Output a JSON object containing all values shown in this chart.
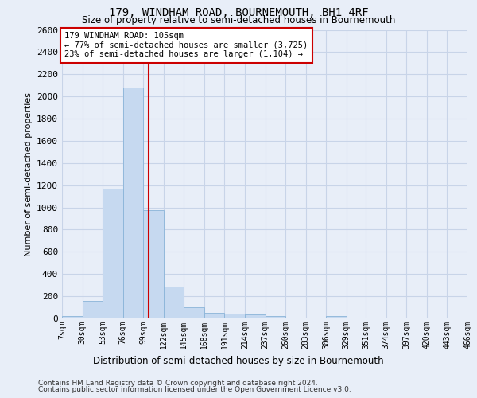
{
  "title": "179, WINDHAM ROAD, BOURNEMOUTH, BH1 4RF",
  "subtitle": "Size of property relative to semi-detached houses in Bournemouth",
  "xlabel_bottom": "Distribution of semi-detached houses by size in Bournemouth",
  "ylabel": "Number of semi-detached properties",
  "footer1": "Contains HM Land Registry data © Crown copyright and database right 2024.",
  "footer2": "Contains public sector information licensed under the Open Government Licence v3.0.",
  "bar_edges": [
    7,
    30,
    53,
    76,
    99,
    122,
    145,
    168,
    191,
    214,
    237,
    260,
    283,
    306,
    329,
    351,
    374,
    397,
    420,
    443,
    466
  ],
  "bar_heights": [
    20,
    155,
    1170,
    2080,
    975,
    290,
    100,
    48,
    45,
    38,
    25,
    10,
    0,
    25,
    0,
    0,
    0,
    0,
    0,
    0
  ],
  "bar_color": "#c6d9f0",
  "bar_edgecolor": "#8ab4d8",
  "grid_color": "#c8d4e8",
  "background_color": "#e8eef8",
  "property_size": 105,
  "red_line_color": "#cc0000",
  "annotation_line1": "179 WINDHAM ROAD: 105sqm",
  "annotation_line2": "← 77% of semi-detached houses are smaller (3,725)",
  "annotation_line3": "23% of semi-detached houses are larger (1,104) →",
  "annotation_box_color": "#ffffff",
  "annotation_box_edgecolor": "#cc0000",
  "ylim": [
    0,
    2600
  ],
  "yticks": [
    0,
    200,
    400,
    600,
    800,
    1000,
    1200,
    1400,
    1600,
    1800,
    2000,
    2200,
    2400,
    2600
  ]
}
